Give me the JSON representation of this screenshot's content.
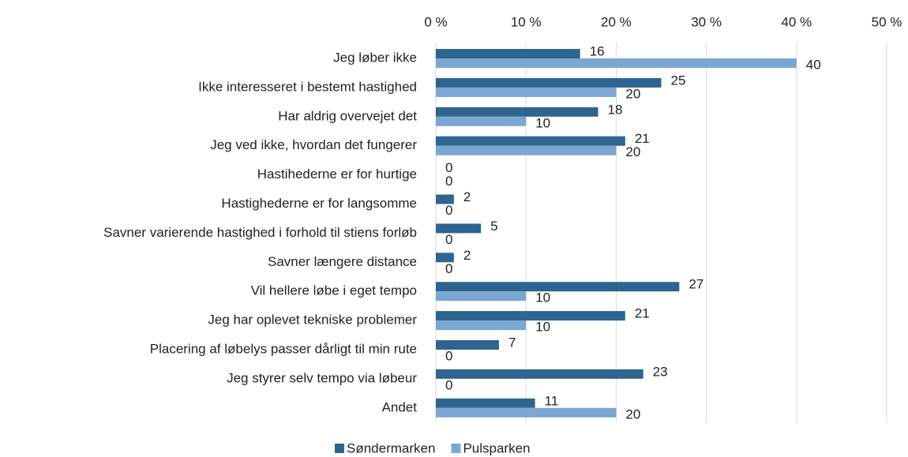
{
  "chart_data": {
    "type": "bar",
    "orientation": "horizontal",
    "categories": [
      "Jeg løber ikke",
      "Ikke interesseret i bestemt hastighed",
      "Har aldrig overvejet det",
      "Jeg ved ikke, hvordan det fungerer",
      "Hastihederne er for hurtige",
      "Hastighederne er for langsomme",
      "Savner varierende hastighed i forhold til stiens forløb",
      "Savner længere distance",
      "Vil hellere løbe i eget tempo",
      "Jeg har oplevet tekniske problemer",
      "Placering af løbelys passer dårligt til min rute",
      "Jeg styrer selv tempo via løbeur",
      "Andet"
    ],
    "series": [
      {
        "name": "Søndermarken",
        "color": "#2e6590",
        "values": [
          16,
          25,
          18,
          21,
          0,
          2,
          5,
          2,
          27,
          21,
          7,
          23,
          11
        ]
      },
      {
        "name": "Pulsparken",
        "color": "#7ba7d3",
        "values": [
          40,
          20,
          10,
          20,
          0,
          0,
          0,
          0,
          10,
          10,
          0,
          0,
          20
        ]
      }
    ],
    "xlim": [
      0,
      50
    ],
    "xticks": [
      {
        "value": 0,
        "label": "0 %"
      },
      {
        "value": 10,
        "label": "10 %"
      },
      {
        "value": 20,
        "label": "20 %"
      },
      {
        "value": 30,
        "label": "30 %"
      },
      {
        "value": 40,
        "label": "40 %"
      },
      {
        "value": 50,
        "label": "50 %"
      }
    ],
    "grid": true,
    "legend": "bottom"
  }
}
